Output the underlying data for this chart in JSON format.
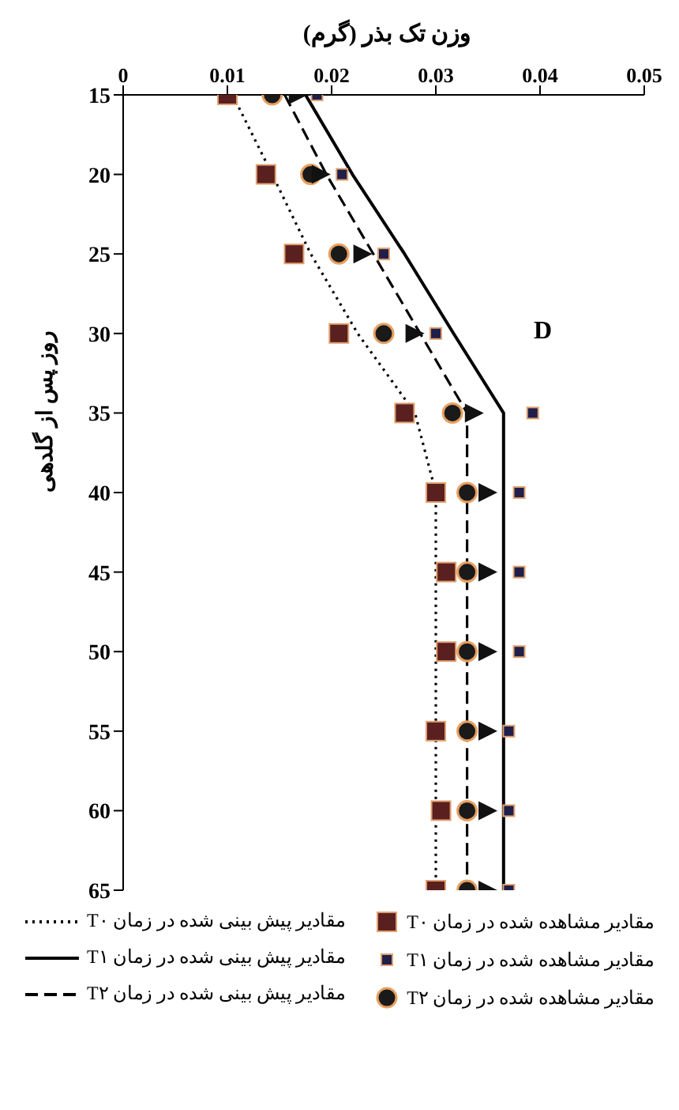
{
  "chart_data": {
    "type": "line",
    "xlabel": "وزن تک بذر (گرم)",
    "ylabel": "روز پس از گلدهی",
    "annotations": [
      "D"
    ],
    "xlim": [
      0,
      0.05
    ],
    "xticks": [
      0,
      0.01,
      0.02,
      0.03,
      0.04,
      0.05
    ],
    "ylim": [
      65,
      15
    ],
    "yticks": [
      15,
      20,
      25,
      30,
      35,
      40,
      45,
      50,
      55,
      60,
      65
    ],
    "grid": false,
    "legend": "bottom",
    "series": [
      {
        "name": "مقادیر پیش بینی شده در زمان T۰",
        "type": "line",
        "line_style": "dotted",
        "marker": "none",
        "color": "#000000",
        "x": [
          0.0105,
          0.0143,
          0.018,
          0.0225,
          0.028,
          0.03,
          0.03,
          0.03,
          0.03,
          0.03,
          0.03
        ],
        "values": [
          15,
          20,
          25,
          30,
          35,
          40,
          45,
          50,
          55,
          60,
          65
        ]
      },
      {
        "name": "مقادیر پیش بینی شده در زمان T۱",
        "type": "line",
        "line_style": "solid",
        "marker": "none",
        "color": "#000000",
        "x": [
          0.0175,
          0.022,
          0.027,
          0.0317,
          0.0365,
          0.0365,
          0.0365,
          0.0365,
          0.0365,
          0.0365,
          0.0365
        ],
        "values": [
          15,
          20,
          25,
          30,
          35,
          40,
          45,
          50,
          55,
          60,
          65
        ]
      },
      {
        "name": "مقادیر پیش بینی شده در زمان T۲",
        "type": "line",
        "line_style": "dashed",
        "marker": "none",
        "color": "#000000",
        "x": [
          0.0155,
          0.0195,
          0.024,
          0.0285,
          0.033,
          0.033,
          0.033,
          0.033,
          0.033,
          0.033,
          0.033
        ],
        "values": [
          15,
          20,
          25,
          30,
          35,
          40,
          45,
          50,
          55,
          60,
          65
        ]
      },
      {
        "name": "مقادیر مشاهده شده در زمان T۰",
        "type": "scatter",
        "marker": "square",
        "color": "#5a1f1f",
        "x": [
          0.01,
          0.0137,
          0.0164,
          0.0207,
          0.027,
          0.03,
          0.031,
          0.031,
          0.03,
          0.0305,
          0.03
        ],
        "values": [
          15,
          20,
          25,
          30,
          35,
          40,
          45,
          50,
          55,
          60,
          65
        ]
      },
      {
        "name": "مقادیر مشاهده شده در زمان T۱",
        "type": "scatter",
        "marker": "square",
        "color": "#1f1f4a",
        "x": [
          0.0186,
          0.021,
          0.025,
          0.03,
          0.0393,
          0.038,
          0.038,
          0.038,
          0.037,
          0.037,
          0.037
        ],
        "values": [
          15,
          20,
          25,
          30,
          35,
          40,
          45,
          50,
          55,
          60,
          65
        ]
      },
      {
        "name": "مقادیر مشاهده شده در زمان T۲",
        "type": "scatter",
        "marker": "circle",
        "color": "#1a1a1a",
        "x": [
          0.0143,
          0.018,
          0.0207,
          0.025,
          0.0316,
          0.033,
          0.033,
          0.033,
          0.033,
          0.033,
          0.033
        ],
        "values": [
          15,
          20,
          25,
          30,
          35,
          40,
          45,
          50,
          55,
          60,
          65
        ]
      },
      {
        "type": "scatter",
        "marker": "triangle",
        "color": "#111111",
        "x": [
          0.0168,
          0.019,
          0.023,
          0.028,
          0.0337,
          0.035,
          0.035,
          0.035,
          0.035,
          0.035,
          0.035
        ],
        "values": [
          15,
          20,
          25,
          30,
          35,
          40,
          45,
          50,
          55,
          60,
          65
        ]
      }
    ]
  }
}
